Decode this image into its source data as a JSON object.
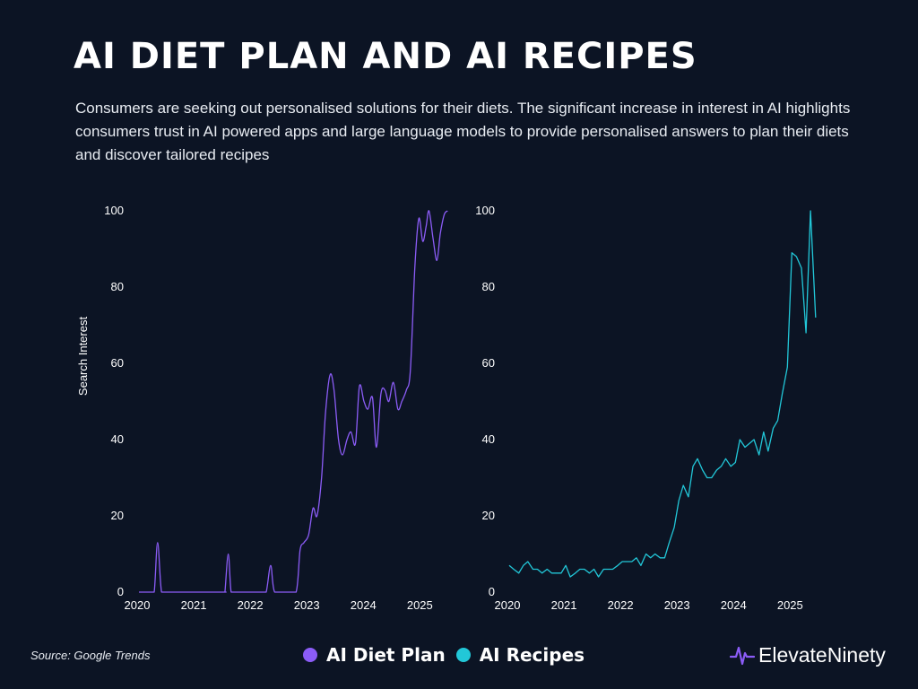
{
  "header": {
    "title": "AI DIET PLAN AND AI RECIPES",
    "subtitle": "Consumers are seeking out personalised solutions for their diets. The significant increase in interest in AI highlights consumers trust in AI powered apps and large language models to provide personalised answers to plan their diets and discover tailored recipes"
  },
  "footer": {
    "source": "Source: Google Trends",
    "brand": "ElevateNinety",
    "brand_icon": "pulse-wave-icon"
  },
  "colors": {
    "background": "#0c1424",
    "diet": "#8b5cf6",
    "recipes": "#22c7d8"
  },
  "legend": [
    {
      "label": "AI Diet Plan",
      "color": "#8b5cf6"
    },
    {
      "label": "AI Recipes",
      "color": "#22c7d8"
    }
  ],
  "chart_data": [
    {
      "type": "line",
      "title": "AI Diet Plan",
      "ylabel": "Search Interest",
      "xlabel": "",
      "xlim": [
        2020,
        2025.55
      ],
      "ylim": [
        0,
        100
      ],
      "xticks": [
        2020,
        2021,
        2022,
        2023,
        2024,
        2025
      ],
      "yticks": [
        0,
        20,
        40,
        60,
        80,
        100
      ],
      "grid": false,
      "smooth": true,
      "color": "#8b5cf6",
      "x": [
        2020.0,
        2020.2,
        2020.27,
        2020.33,
        2020.4,
        2020.5,
        2021.0,
        2021.5,
        2021.52,
        2021.58,
        2021.63,
        2021.7,
        2022.0,
        2022.1,
        2022.17,
        2022.25,
        2022.33,
        2022.4,
        2022.6,
        2022.78,
        2022.85,
        2022.92,
        2023.0,
        2023.08,
        2023.15,
        2023.23,
        2023.3,
        2023.38,
        2023.45,
        2023.53,
        2023.6,
        2023.68,
        2023.75,
        2023.83,
        2023.9,
        2023.98,
        2024.05,
        2024.13,
        2024.2,
        2024.28,
        2024.35,
        2024.42,
        2024.5,
        2024.58,
        2024.65,
        2024.73,
        2024.8,
        2024.88,
        2024.95,
        2025.02,
        2025.08,
        2025.13,
        2025.2,
        2025.27,
        2025.33,
        2025.4,
        2025.46
      ],
      "y": [
        0,
        0,
        0,
        13,
        0,
        0,
        0,
        0,
        0,
        10,
        0,
        0,
        0,
        0,
        0,
        0,
        7,
        0,
        0,
        0,
        11,
        13,
        15,
        22,
        20,
        30,
        47,
        57,
        53,
        40,
        36,
        40,
        42,
        39,
        54,
        50,
        48,
        51,
        38,
        52,
        53,
        50,
        55,
        48,
        50,
        53,
        58,
        85,
        98,
        92,
        96,
        100,
        93,
        87,
        94,
        99,
        100
      ],
      "x_display_min": 2020.0,
      "y_note": "values are weekly/monthly normalized search interest"
    },
    {
      "type": "line",
      "title": "AI Recipes",
      "ylabel": "",
      "xlabel": "",
      "xlim": [
        2020,
        2025.55
      ],
      "ylim": [
        0,
        100
      ],
      "xticks": [
        2020,
        2021,
        2022,
        2023,
        2024,
        2025
      ],
      "yticks": [
        0,
        20,
        40,
        60,
        80,
        100
      ],
      "grid": false,
      "smooth": false,
      "color": "#22c7d8",
      "x": [
        2020.0,
        2020.08,
        2020.17,
        2020.25,
        2020.33,
        2020.42,
        2020.5,
        2020.58,
        2020.67,
        2020.75,
        2020.83,
        2020.92,
        2021.0,
        2021.08,
        2021.17,
        2021.25,
        2021.33,
        2021.42,
        2021.5,
        2021.58,
        2021.67,
        2021.75,
        2021.83,
        2021.92,
        2022.0,
        2022.08,
        2022.17,
        2022.25,
        2022.33,
        2022.42,
        2022.5,
        2022.58,
        2022.67,
        2022.75,
        2022.83,
        2022.92,
        2023.0,
        2023.08,
        2023.17,
        2023.25,
        2023.33,
        2023.42,
        2023.5,
        2023.58,
        2023.67,
        2023.75,
        2023.83,
        2023.92,
        2024.0,
        2024.08,
        2024.17,
        2024.25,
        2024.33,
        2024.42,
        2024.5,
        2024.58,
        2024.67,
        2024.75,
        2024.83,
        2024.92,
        2025.0,
        2025.08,
        2025.17,
        2025.25,
        2025.33,
        2025.42
      ],
      "y": [
        7,
        6,
        5,
        7,
        8,
        6,
        6,
        5,
        6,
        5,
        5,
        5,
        7,
        4,
        5,
        6,
        6,
        5,
        6,
        4,
        6,
        6,
        6,
        7,
        8,
        8,
        8,
        9,
        7,
        10,
        9,
        10,
        9,
        9,
        13,
        17,
        24,
        28,
        25,
        33,
        35,
        32,
        30,
        30,
        32,
        33,
        35,
        33,
        34,
        40,
        38,
        39,
        40,
        36,
        42,
        37,
        43,
        45,
        52,
        59,
        89,
        88,
        85,
        68,
        100,
        72
      ]
    }
  ]
}
